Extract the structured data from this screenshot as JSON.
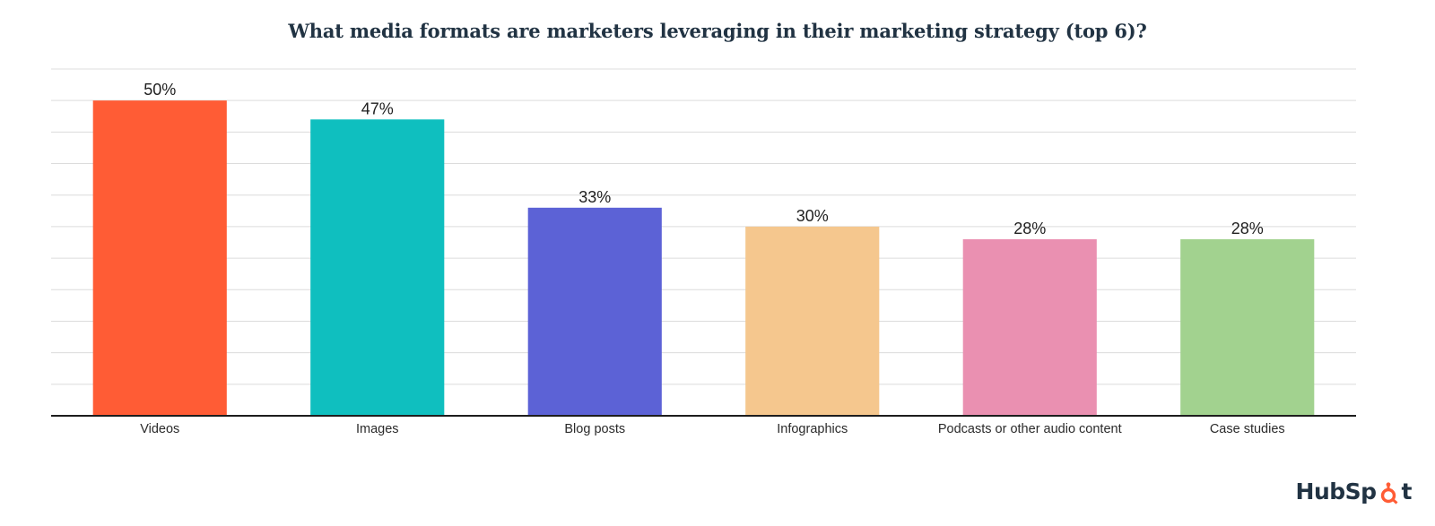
{
  "chart_data": {
    "type": "bar",
    "title": "What media formats are marketers leveraging in their marketing strategy (top 6)?",
    "categories": [
      "Videos",
      "Images",
      "Blog posts",
      "Infographics",
      "Podcasts or other audio content",
      "Case studies"
    ],
    "values": [
      50,
      47,
      33,
      30,
      28,
      28
    ],
    "value_labels": [
      "50%",
      "47%",
      "33%",
      "30%",
      "28%",
      "28%"
    ],
    "colors": [
      "#FF5C35",
      "#0FBFBF",
      "#5C62D6",
      "#F5C78E",
      "#EA90B1",
      "#A2D28F"
    ],
    "xlabel": "",
    "ylabel": "",
    "ylim": [
      0,
      55
    ],
    "grid": true,
    "legend": "none"
  },
  "brand": {
    "prefix": "HubSp",
    "suffix": "t",
    "accent": "#FF5C35"
  }
}
